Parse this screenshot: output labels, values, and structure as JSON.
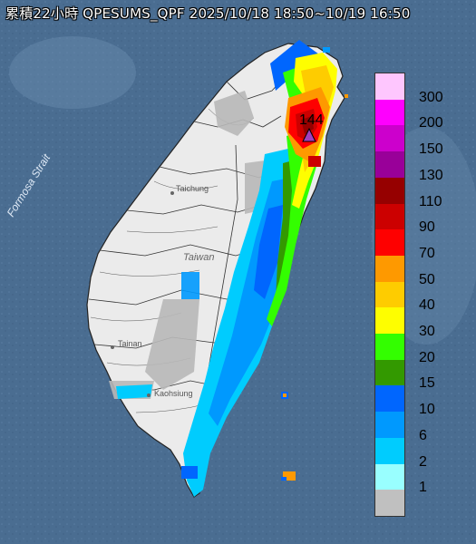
{
  "title": "累積22小時 QPESUMS_QPF 2025/10/18 18:50~10/19 16:50",
  "max_marker": {
    "value": "144",
    "color": "#a040c0"
  },
  "places": {
    "strait": "Formosa Strait",
    "island": "Taiwan",
    "taichung": "Taichung",
    "tainan": "Tainan",
    "kaohsiung": "Kaohsiung"
  },
  "legend": {
    "labels": [
      "300",
      "200",
      "150",
      "130",
      "110",
      "90",
      "70",
      "50",
      "40",
      "30",
      "20",
      "15",
      "10",
      "6",
      "2",
      "1"
    ],
    "colors": [
      "#fec6fe",
      "#fe00fe",
      "#cc00cc",
      "#990099",
      "#960000",
      "#cc0000",
      "#fe0000",
      "#fe9900",
      "#fecc00",
      "#fefe00",
      "#33fe00",
      "#339900",
      "#0066fe",
      "#0099fe",
      "#00ccfe",
      "#99ffff",
      "#c0c0c0"
    ]
  },
  "colors": {
    "sea": "#4a6d91",
    "land": "#ebebeb",
    "no_rain": "#b8b8b8"
  }
}
